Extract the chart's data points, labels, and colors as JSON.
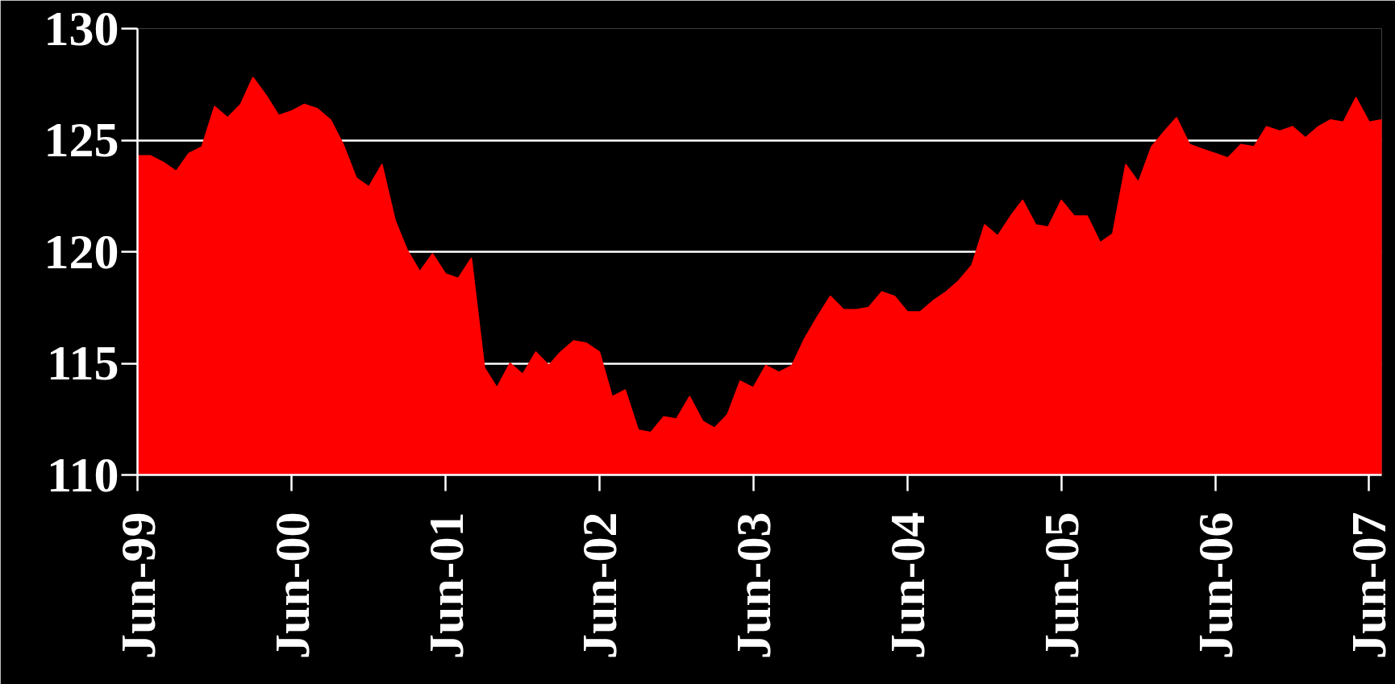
{
  "chart_data": {
    "type": "area",
    "color": "#ff0000",
    "x": [
      "1999-06",
      "1999-07",
      "1999-08",
      "1999-09",
      "1999-10",
      "1999-11",
      "1999-12",
      "2000-01",
      "2000-02",
      "2000-03",
      "2000-04",
      "2000-05",
      "2000-06",
      "2000-07",
      "2000-08",
      "2000-09",
      "2000-10",
      "2000-11",
      "2000-12",
      "2001-01",
      "2001-02",
      "2001-03",
      "2001-04",
      "2001-05",
      "2001-06",
      "2001-07",
      "2001-08",
      "2001-09",
      "2001-10",
      "2001-11",
      "2001-12",
      "2002-01",
      "2002-02",
      "2002-03",
      "2002-04",
      "2002-05",
      "2002-06",
      "2002-07",
      "2002-08",
      "2002-09",
      "2002-10",
      "2002-11",
      "2002-12",
      "2003-01",
      "2003-02",
      "2003-03",
      "2003-04",
      "2003-05",
      "2003-06",
      "2003-07",
      "2003-08",
      "2003-09",
      "2003-10",
      "2003-11",
      "2003-12",
      "2004-01",
      "2004-02",
      "2004-03",
      "2004-04",
      "2004-05",
      "2004-06",
      "2004-07",
      "2004-08",
      "2004-09",
      "2004-10",
      "2004-11",
      "2004-12",
      "2005-01",
      "2005-02",
      "2005-03",
      "2005-04",
      "2005-05",
      "2005-06",
      "2005-07",
      "2005-08",
      "2005-09",
      "2005-10",
      "2005-11",
      "2005-12",
      "2006-01",
      "2006-02",
      "2006-03",
      "2006-04",
      "2006-05",
      "2006-06",
      "2006-07",
      "2006-08",
      "2006-09",
      "2006-10",
      "2006-11",
      "2006-12",
      "2007-01",
      "2007-02",
      "2007-03",
      "2007-04",
      "2007-05",
      "2007-06",
      "2007-07"
    ],
    "values": [
      124.3,
      124.3,
      124.0,
      123.6,
      124.4,
      124.7,
      126.5,
      126.0,
      126.6,
      127.8,
      127.0,
      126.1,
      126.3,
      126.6,
      126.4,
      125.9,
      124.8,
      123.3,
      122.9,
      123.9,
      121.4,
      120.1,
      119.1,
      119.9,
      119.0,
      118.8,
      119.7,
      114.8,
      113.9,
      115.0,
      114.5,
      115.5,
      114.9,
      115.5,
      116.0,
      115.9,
      115.5,
      113.5,
      113.8,
      112.0,
      111.9,
      112.6,
      112.5,
      113.5,
      112.4,
      112.1,
      112.7,
      114.2,
      113.9,
      114.9,
      114.6,
      114.9,
      116.1,
      117.1,
      118.0,
      117.4,
      117.4,
      117.5,
      118.2,
      118.0,
      117.3,
      117.3,
      117.8,
      118.2,
      118.7,
      119.4,
      121.2,
      120.7,
      121.6,
      122.3,
      121.2,
      121.1,
      122.3,
      121.6,
      121.6,
      120.4,
      120.8,
      123.9,
      123.1,
      124.7,
      125.4,
      126.0,
      124.8,
      124.6,
      124.4,
      124.2,
      124.8,
      124.7,
      125.6,
      125.4,
      125.6,
      125.1,
      125.6,
      125.9,
      125.8,
      126.9,
      125.8,
      125.9
    ],
    "xlim": [
      "1999-06",
      "2007-07"
    ],
    "ylim": [
      110,
      130
    ],
    "xticks": [
      {
        "value": "1999-06",
        "label": "Jun-99"
      },
      {
        "value": "2000-06",
        "label": "Jun-00"
      },
      {
        "value": "2001-06",
        "label": "Jun-01"
      },
      {
        "value": "2002-06",
        "label": "Jun-02"
      },
      {
        "value": "2003-06",
        "label": "Jun-03"
      },
      {
        "value": "2004-06",
        "label": "Jun-04"
      },
      {
        "value": "2005-06",
        "label": "Jun-05"
      },
      {
        "value": "2006-06",
        "label": "Jun-06"
      },
      {
        "value": "2007-06",
        "label": "Jun-07"
      }
    ],
    "yticks": [
      110,
      115,
      120,
      125,
      130
    ],
    "grid": "y"
  }
}
